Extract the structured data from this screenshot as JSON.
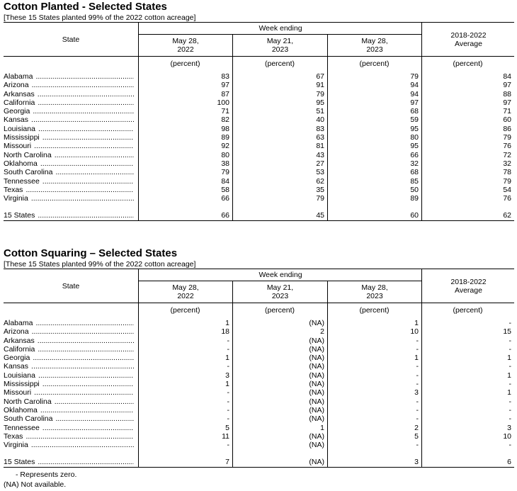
{
  "tables": [
    {
      "title": "Cotton Planted - Selected States",
      "subtitle": "[These 15 States planted 99% of the 2022 cotton acreage]",
      "state_header": "State",
      "week_ending": "Week ending",
      "columns": [
        "May 28,\n2022",
        "May 21,\n2023",
        "May 28,\n2023",
        "2018-2022\nAverage"
      ],
      "unit": "(percent)",
      "rows": [
        {
          "state": "Alabama",
          "values": [
            "83",
            "67",
            "79",
            "84"
          ]
        },
        {
          "state": "Arizona",
          "values": [
            "97",
            "91",
            "94",
            "97"
          ]
        },
        {
          "state": "Arkansas",
          "values": [
            "87",
            "79",
            "94",
            "88"
          ]
        },
        {
          "state": "California",
          "values": [
            "100",
            "95",
            "97",
            "97"
          ]
        },
        {
          "state": "Georgia",
          "values": [
            "71",
            "51",
            "68",
            "71"
          ]
        },
        {
          "state": "Kansas",
          "values": [
            "82",
            "40",
            "59",
            "60"
          ]
        },
        {
          "state": "Louisiana",
          "values": [
            "98",
            "83",
            "95",
            "86"
          ]
        },
        {
          "state": "Mississippi",
          "values": [
            "89",
            "63",
            "80",
            "79"
          ]
        },
        {
          "state": "Missouri",
          "values": [
            "92",
            "81",
            "95",
            "76"
          ]
        },
        {
          "state": "North Carolina",
          "values": [
            "80",
            "43",
            "66",
            "72"
          ]
        },
        {
          "state": "Oklahoma",
          "values": [
            "38",
            "27",
            "32",
            "32"
          ]
        },
        {
          "state": "South Carolina",
          "values": [
            "79",
            "53",
            "68",
            "78"
          ]
        },
        {
          "state": "Tennessee",
          "values": [
            "84",
            "62",
            "85",
            "79"
          ]
        },
        {
          "state": "Texas",
          "values": [
            "58",
            "35",
            "50",
            "54"
          ]
        },
        {
          "state": "Virginia",
          "values": [
            "66",
            "79",
            "89",
            "76"
          ]
        }
      ],
      "total": {
        "state": "15 States",
        "values": [
          "66",
          "45",
          "60",
          "62"
        ]
      }
    },
    {
      "title": "Cotton Squaring – Selected States",
      "subtitle": "[These 15 States planted 99% of the 2022 cotton acreage]",
      "state_header": "State",
      "week_ending": "Week ending",
      "columns": [
        "May 28,\n2022",
        "May 21,\n2023",
        "May 28,\n2023",
        "2018-2022\nAverage"
      ],
      "unit": "(percent)",
      "rows": [
        {
          "state": "Alabama",
          "values": [
            "1",
            "(NA)",
            "1",
            "-"
          ]
        },
        {
          "state": "Arizona",
          "values": [
            "18",
            "2",
            "10",
            "15"
          ]
        },
        {
          "state": "Arkansas",
          "values": [
            "-",
            "(NA)",
            "-",
            "-"
          ]
        },
        {
          "state": "California",
          "values": [
            "-",
            "(NA)",
            "-",
            "-"
          ]
        },
        {
          "state": "Georgia",
          "values": [
            "1",
            "(NA)",
            "1",
            "1"
          ]
        },
        {
          "state": "Kansas",
          "values": [
            "-",
            "(NA)",
            "-",
            "-"
          ]
        },
        {
          "state": "Louisiana",
          "values": [
            "3",
            "(NA)",
            "-",
            "1"
          ]
        },
        {
          "state": "Mississippi",
          "values": [
            "1",
            "(NA)",
            "-",
            "-"
          ]
        },
        {
          "state": "Missouri",
          "values": [
            "-",
            "(NA)",
            "3",
            "1"
          ]
        },
        {
          "state": "North Carolina",
          "values": [
            "-",
            "(NA)",
            "-",
            "-"
          ]
        },
        {
          "state": "Oklahoma",
          "values": [
            "-",
            "(NA)",
            "-",
            "-"
          ]
        },
        {
          "state": "South Carolina",
          "values": [
            "-",
            "(NA)",
            "-",
            "-"
          ]
        },
        {
          "state": "Tennessee",
          "values": [
            "5",
            "1",
            "2",
            "3"
          ]
        },
        {
          "state": "Texas",
          "values": [
            "11",
            "(NA)",
            "5",
            "10"
          ]
        },
        {
          "state": "Virginia",
          "values": [
            "-",
            "(NA)",
            "-",
            "-"
          ]
        }
      ],
      "total": {
        "state": "15 States",
        "values": [
          "7",
          "(NA)",
          "3",
          "6"
        ]
      }
    }
  ],
  "footnotes": [
    "- Represents zero.",
    "(NA) Not available."
  ]
}
